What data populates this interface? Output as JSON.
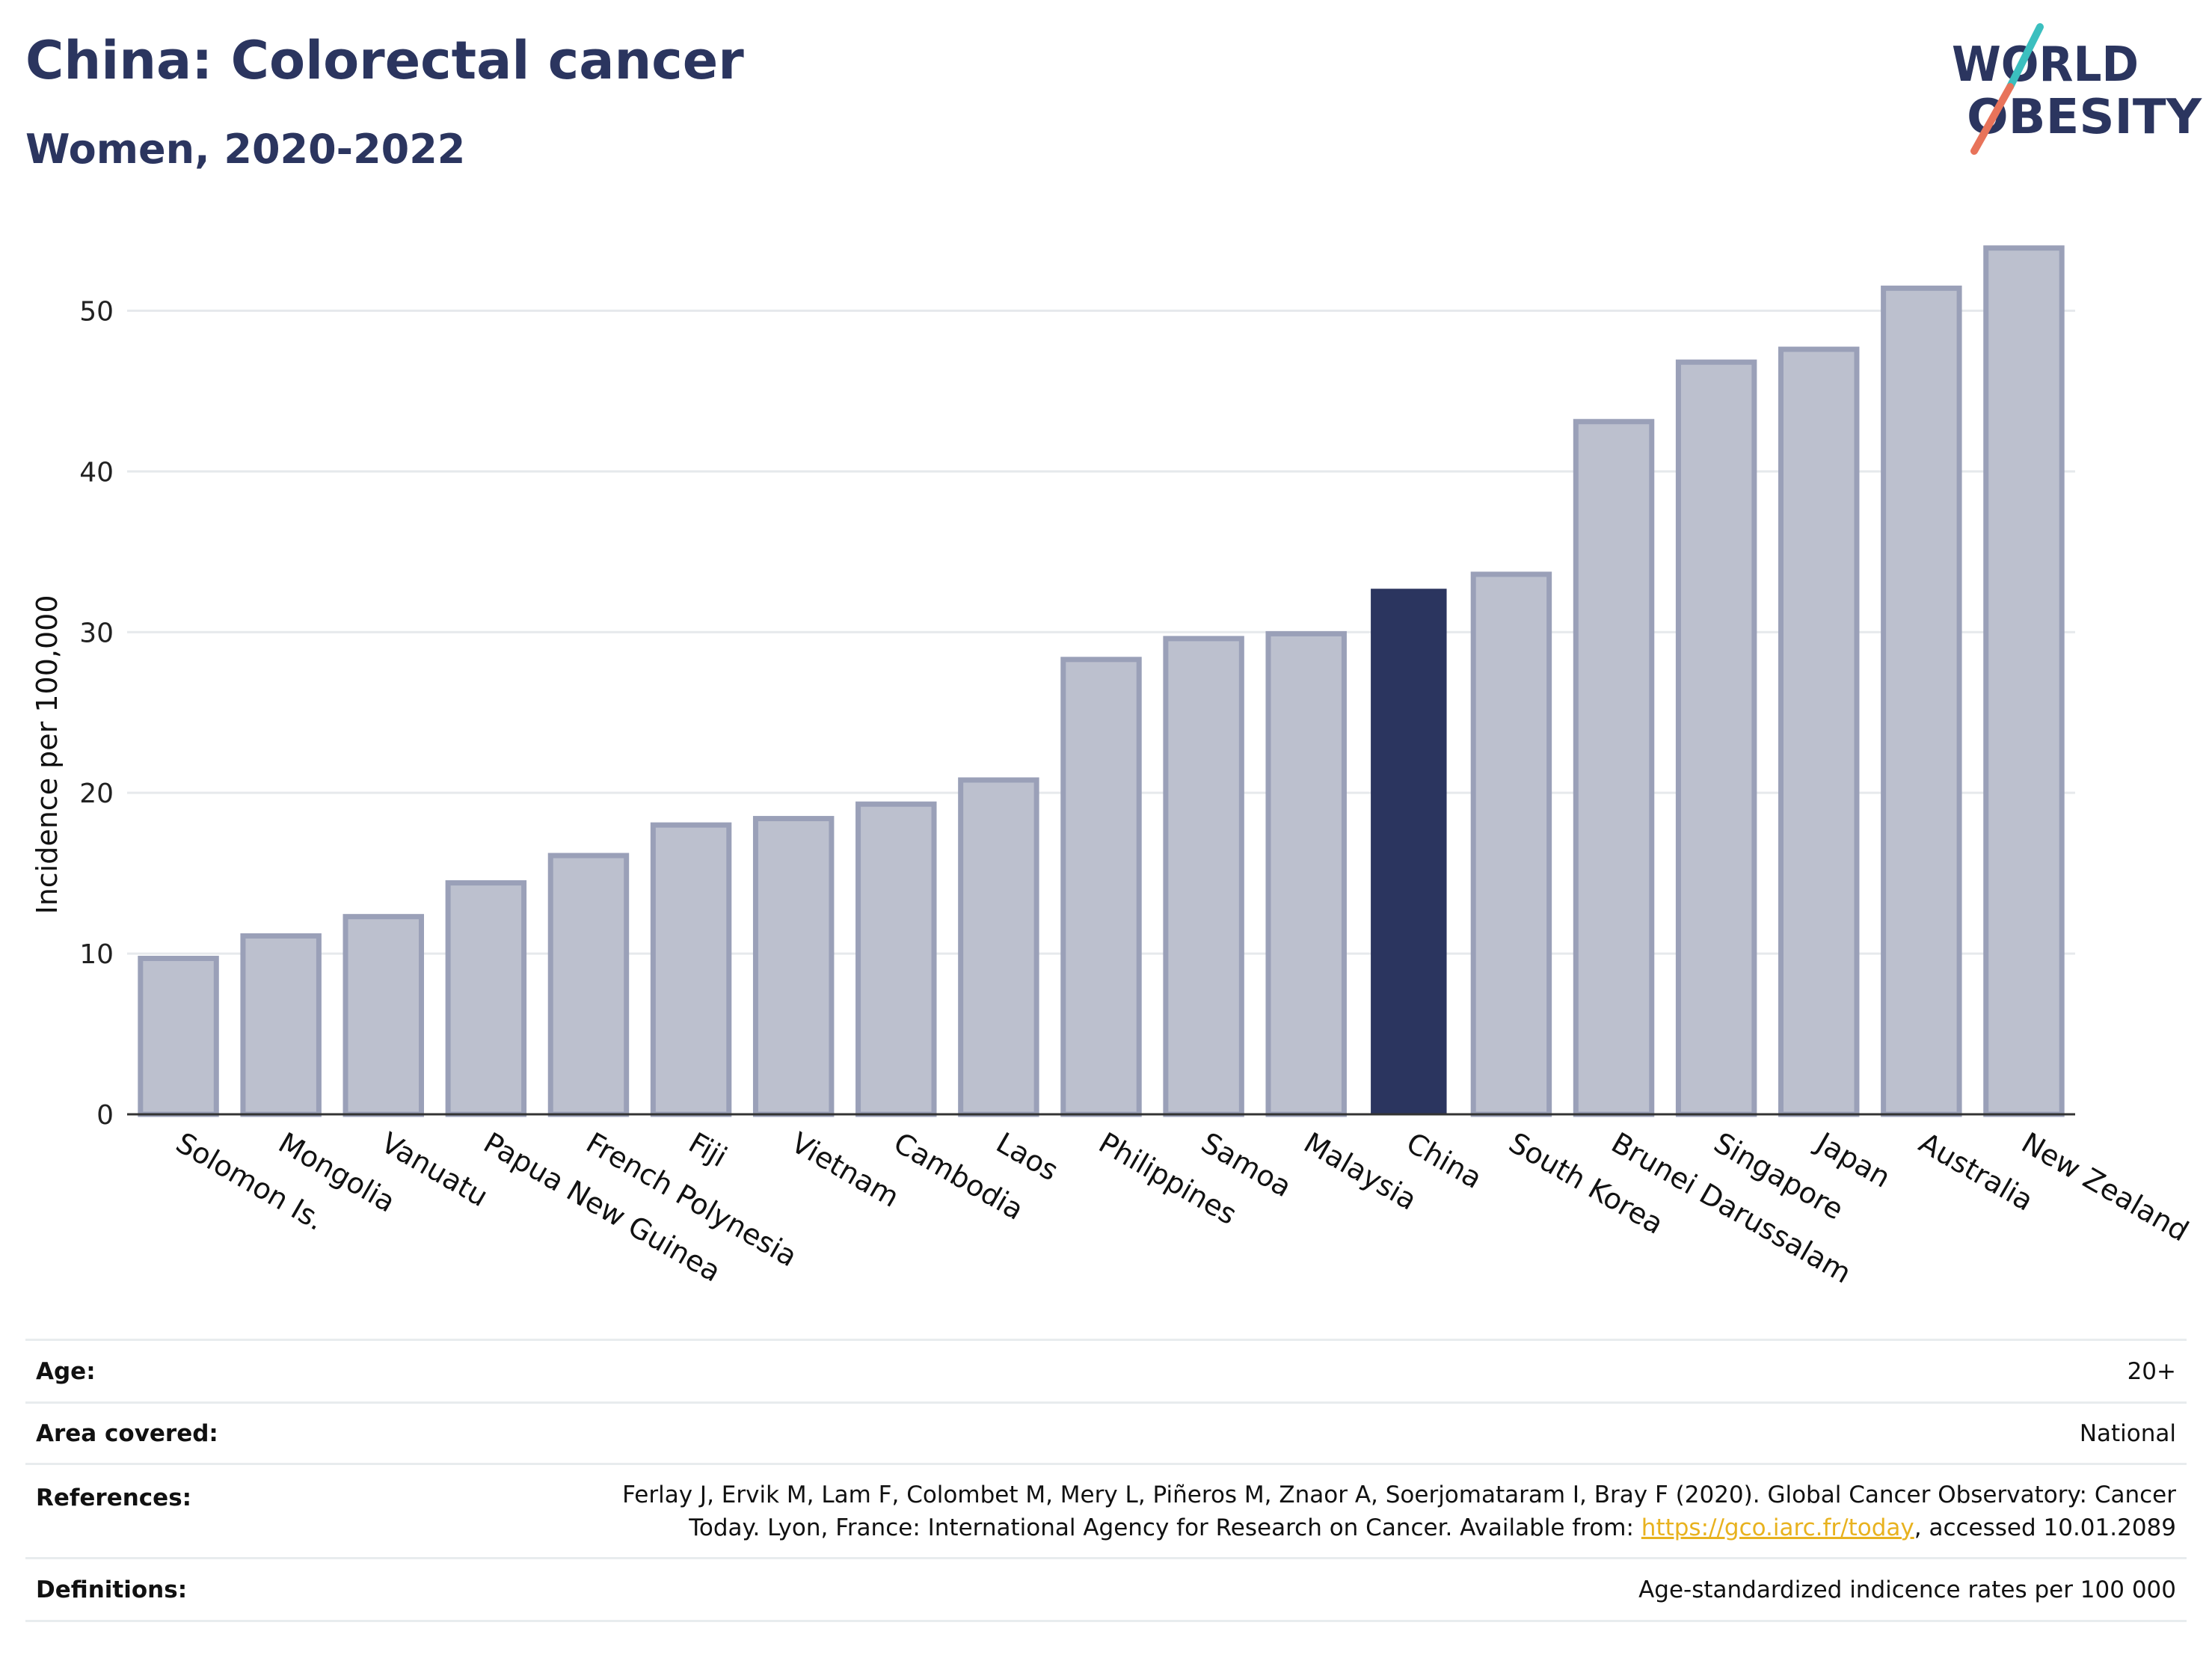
{
  "header": {
    "title": "China: Colorectal cancer",
    "subtitle": "Women, 2020-2022"
  },
  "logo": {
    "line1": "WORLD",
    "line2": "OBESITY",
    "colors": {
      "text": "#2b355f",
      "teal": "#3bbfbf",
      "coral": "#e8735a"
    }
  },
  "chart_data": {
    "type": "bar",
    "ylabel": "Incidence per 100,000",
    "xlabel": "",
    "ylim": [
      0,
      55
    ],
    "yticks": [
      0,
      10,
      20,
      30,
      40,
      50
    ],
    "grid": true,
    "highlight": "China",
    "colors": {
      "bar": "#bcc0ce",
      "bar_edge": "#9aa0b8",
      "highlight": "#2b355f"
    },
    "categories": [
      "Solomon Is.",
      "Mongolia",
      "Vanuatu",
      "Papua New Guinea",
      "French Polynesia",
      "Fiji",
      "Vietnam",
      "Cambodia",
      "Laos",
      "Philippines",
      "Samoa",
      "Malaysia",
      "China",
      "South Korea",
      "Brunei Darussalam",
      "Singapore",
      "Japan",
      "Australia",
      "New Zealand"
    ],
    "values": [
      9.7,
      11.1,
      12.3,
      14.4,
      16.1,
      18.0,
      18.4,
      19.3,
      20.8,
      28.3,
      29.6,
      29.9,
      32.7,
      33.6,
      43.1,
      46.8,
      47.6,
      51.4,
      53.9
    ]
  },
  "info": {
    "age_label": "Age:",
    "age_value": "20+",
    "area_label": "Area covered:",
    "area_value": "National",
    "ref_label": "References:",
    "ref_line1": "Ferlay J, Ervik M, Lam F, Colombet M, Mery L, Piñeros M, Znaor A, Soerjomataram I, Bray F (2020). Global Cancer Observatory: Cancer",
    "ref_line2_pre": "Today. Lyon, France: International Agency for Research on Cancer. Available from: ",
    "ref_link": "https://gco.iarc.fr/today",
    "ref_line2_post": ", accessed 10.01.2089",
    "def_label": "Definitions:",
    "def_value": "Age-standardized indicence rates per 100 000"
  }
}
